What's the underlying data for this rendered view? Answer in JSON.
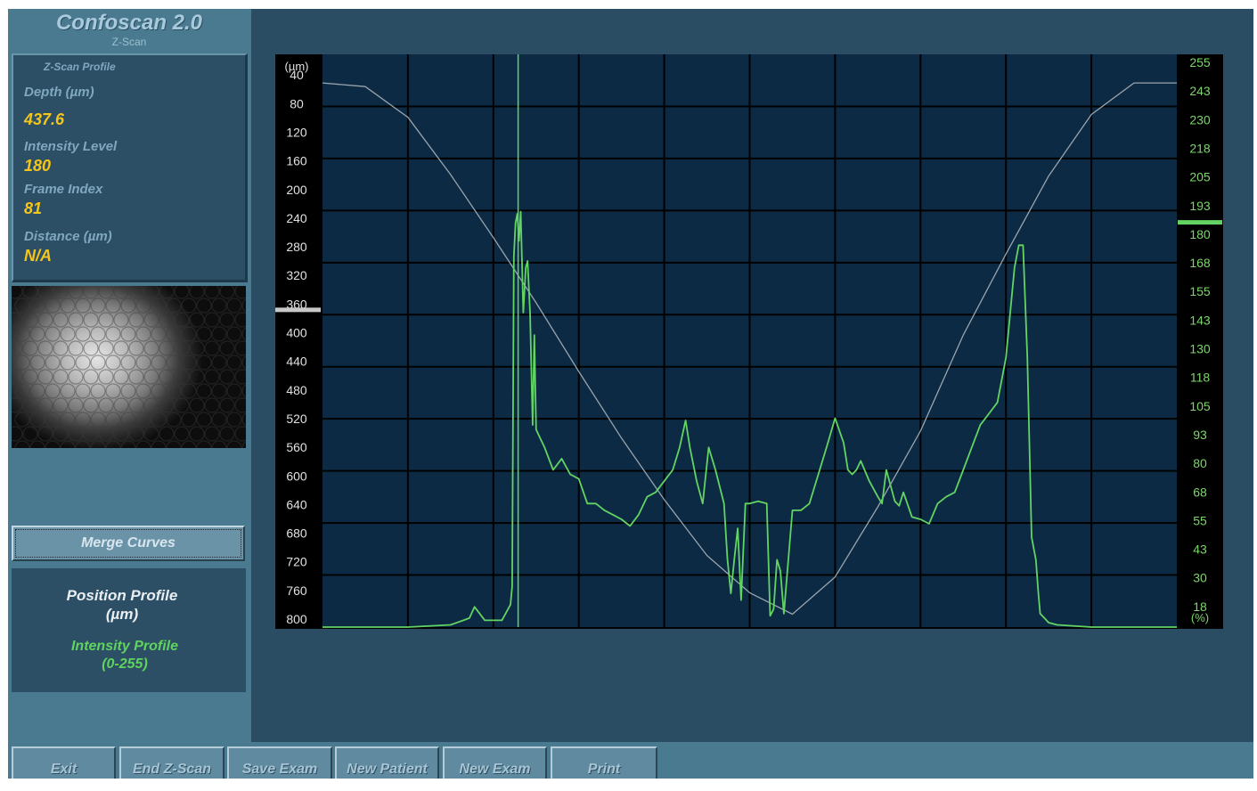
{
  "app": {
    "title": "Confoscan 2.0",
    "subtitle": "Z-Scan"
  },
  "profile": {
    "title": "Z-Scan Profile",
    "depth_label": "Depth (µm)",
    "depth_value": "437.6",
    "intensity_label": "Intensity Level",
    "intensity_value": "180",
    "frame_label": "Frame Index",
    "frame_value": "81",
    "distance_label": "Distance (µm)",
    "distance_value": "N/A"
  },
  "merge_button": "Merge Curves",
  "legend": {
    "position_line1": "Position Profile",
    "position_line2": "(µm)",
    "intensity_line1": "Intensity Profile",
    "intensity_line2": "(0-255)"
  },
  "buttons": [
    "Exit",
    "End Z-Scan",
    "Save Exam",
    "New Patient",
    "New Exam",
    "Print"
  ],
  "colors": {
    "plot_bg": "#0c2a44",
    "grid": "#000000",
    "intensity": "#63d463",
    "position": "#9aa4ac",
    "left_axis_text": "#e0e0e0",
    "right_axis_text": "#7cd66c",
    "accent_yellow": "#f5c518"
  },
  "chart_data": {
    "type": "line",
    "left_axis": {
      "unit": "(µm)",
      "ticks": [
        40,
        80,
        120,
        160,
        200,
        240,
        280,
        320,
        360,
        400,
        440,
        480,
        520,
        560,
        600,
        640,
        680,
        720,
        760,
        800
      ],
      "range": [
        0,
        800
      ],
      "marker": 360
    },
    "right_axis": {
      "unit": "(%)",
      "ticks": [
        "255",
        "243",
        "230",
        "218",
        "205",
        "193",
        "180",
        "168",
        "155",
        "143",
        "130",
        "118",
        "105",
        "93",
        "80",
        "68",
        "55",
        "43",
        "30",
        "18"
      ],
      "range": [
        0,
        255
      ],
      "marker": 180
    },
    "x_range": [
      0,
      1000
    ],
    "grid": true,
    "frame_marker_x": 229,
    "series": [
      {
        "name": "Position Profile",
        "axis": "left",
        "x": [
          0,
          50,
          100,
          150,
          200,
          250,
          300,
          350,
          400,
          450,
          500,
          550,
          600,
          650,
          700,
          750,
          800,
          850,
          900,
          950,
          1000
        ],
        "values": [
          40,
          45,
          88,
          168,
          256,
          347,
          443,
          536,
          622,
          700,
          752,
          782,
          730,
          632,
          526,
          392,
          279,
          170,
          84,
          40,
          40
        ]
      },
      {
        "name": "Intensity Profile",
        "axis": "right",
        "x": [
          0,
          100,
          150,
          165,
          172,
          178,
          190,
          210,
          220,
          222,
          224,
          226,
          228,
          230,
          232,
          235,
          238,
          240,
          243,
          246,
          248,
          250,
          255,
          260,
          270,
          280,
          290,
          300,
          310,
          320,
          330,
          340,
          350,
          360,
          370,
          380,
          390,
          400,
          410,
          418,
          425,
          430,
          438,
          445,
          452,
          460,
          470,
          474,
          478,
          482,
          486,
          490,
          495,
          500,
          510,
          520,
          524,
          528,
          532,
          536,
          540,
          550,
          560,
          570,
          590,
          600,
          610,
          615,
          620,
          625,
          630,
          640,
          650,
          655,
          660,
          670,
          675,
          680,
          690,
          700,
          710,
          720,
          730,
          740,
          750,
          760,
          770,
          780,
          790,
          800,
          810,
          815,
          820,
          825,
          830,
          835,
          838,
          840,
          845,
          850,
          860,
          900,
          950,
          1000
        ],
        "values": [
          0,
          0,
          1,
          3,
          4,
          9,
          3,
          3,
          10,
          18,
          165,
          180,
          184,
          172,
          185,
          140,
          160,
          163,
          140,
          90,
          130,
          88,
          84,
          80,
          70,
          75,
          68,
          66,
          55,
          55,
          52,
          50,
          48,
          45,
          50,
          58,
          60,
          65,
          70,
          80,
          92,
          80,
          65,
          55,
          80,
          70,
          55,
          30,
          15,
          30,
          44,
          12,
          55,
          55,
          56,
          55,
          5,
          8,
          30,
          25,
          6,
          52,
          52,
          55,
          80,
          93,
          82,
          70,
          68,
          70,
          74,
          65,
          58,
          55,
          70,
          56,
          54,
          60,
          49,
          48,
          46,
          55,
          58,
          60,
          70,
          80,
          90,
          95,
          100,
          120,
          160,
          170,
          170,
          120,
          40,
          30,
          15,
          6,
          4,
          2,
          1,
          0,
          0,
          0
        ]
      }
    ]
  }
}
